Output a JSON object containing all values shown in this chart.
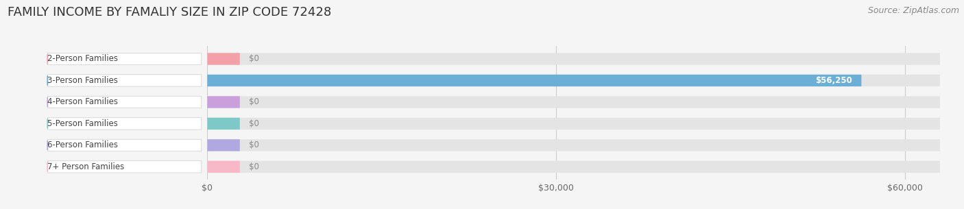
{
  "title": "FAMILY INCOME BY FAMALIY SIZE IN ZIP CODE 72428",
  "source": "Source: ZipAtlas.com",
  "categories": [
    "2-Person Families",
    "3-Person Families",
    "4-Person Families",
    "5-Person Families",
    "6-Person Families",
    "7+ Person Families"
  ],
  "values": [
    0,
    56250,
    0,
    0,
    0,
    0
  ],
  "bar_colors": [
    "#f4a0a8",
    "#6baed6",
    "#c9a0dc",
    "#7ec8c8",
    "#b0a8e0",
    "#f9b8c8"
  ],
  "xlim": [
    0,
    63000
  ],
  "xticks": [
    0,
    30000,
    60000
  ],
  "xtick_labels": [
    "$0",
    "$30,000",
    "$60,000"
  ],
  "bg_color": "#f5f5f5",
  "bar_bg_color": "#e4e4e4",
  "title_fontsize": 13,
  "source_fontsize": 9,
  "label_fontsize": 8.5,
  "value_fontsize": 8.5,
  "bar_height": 0.55
}
